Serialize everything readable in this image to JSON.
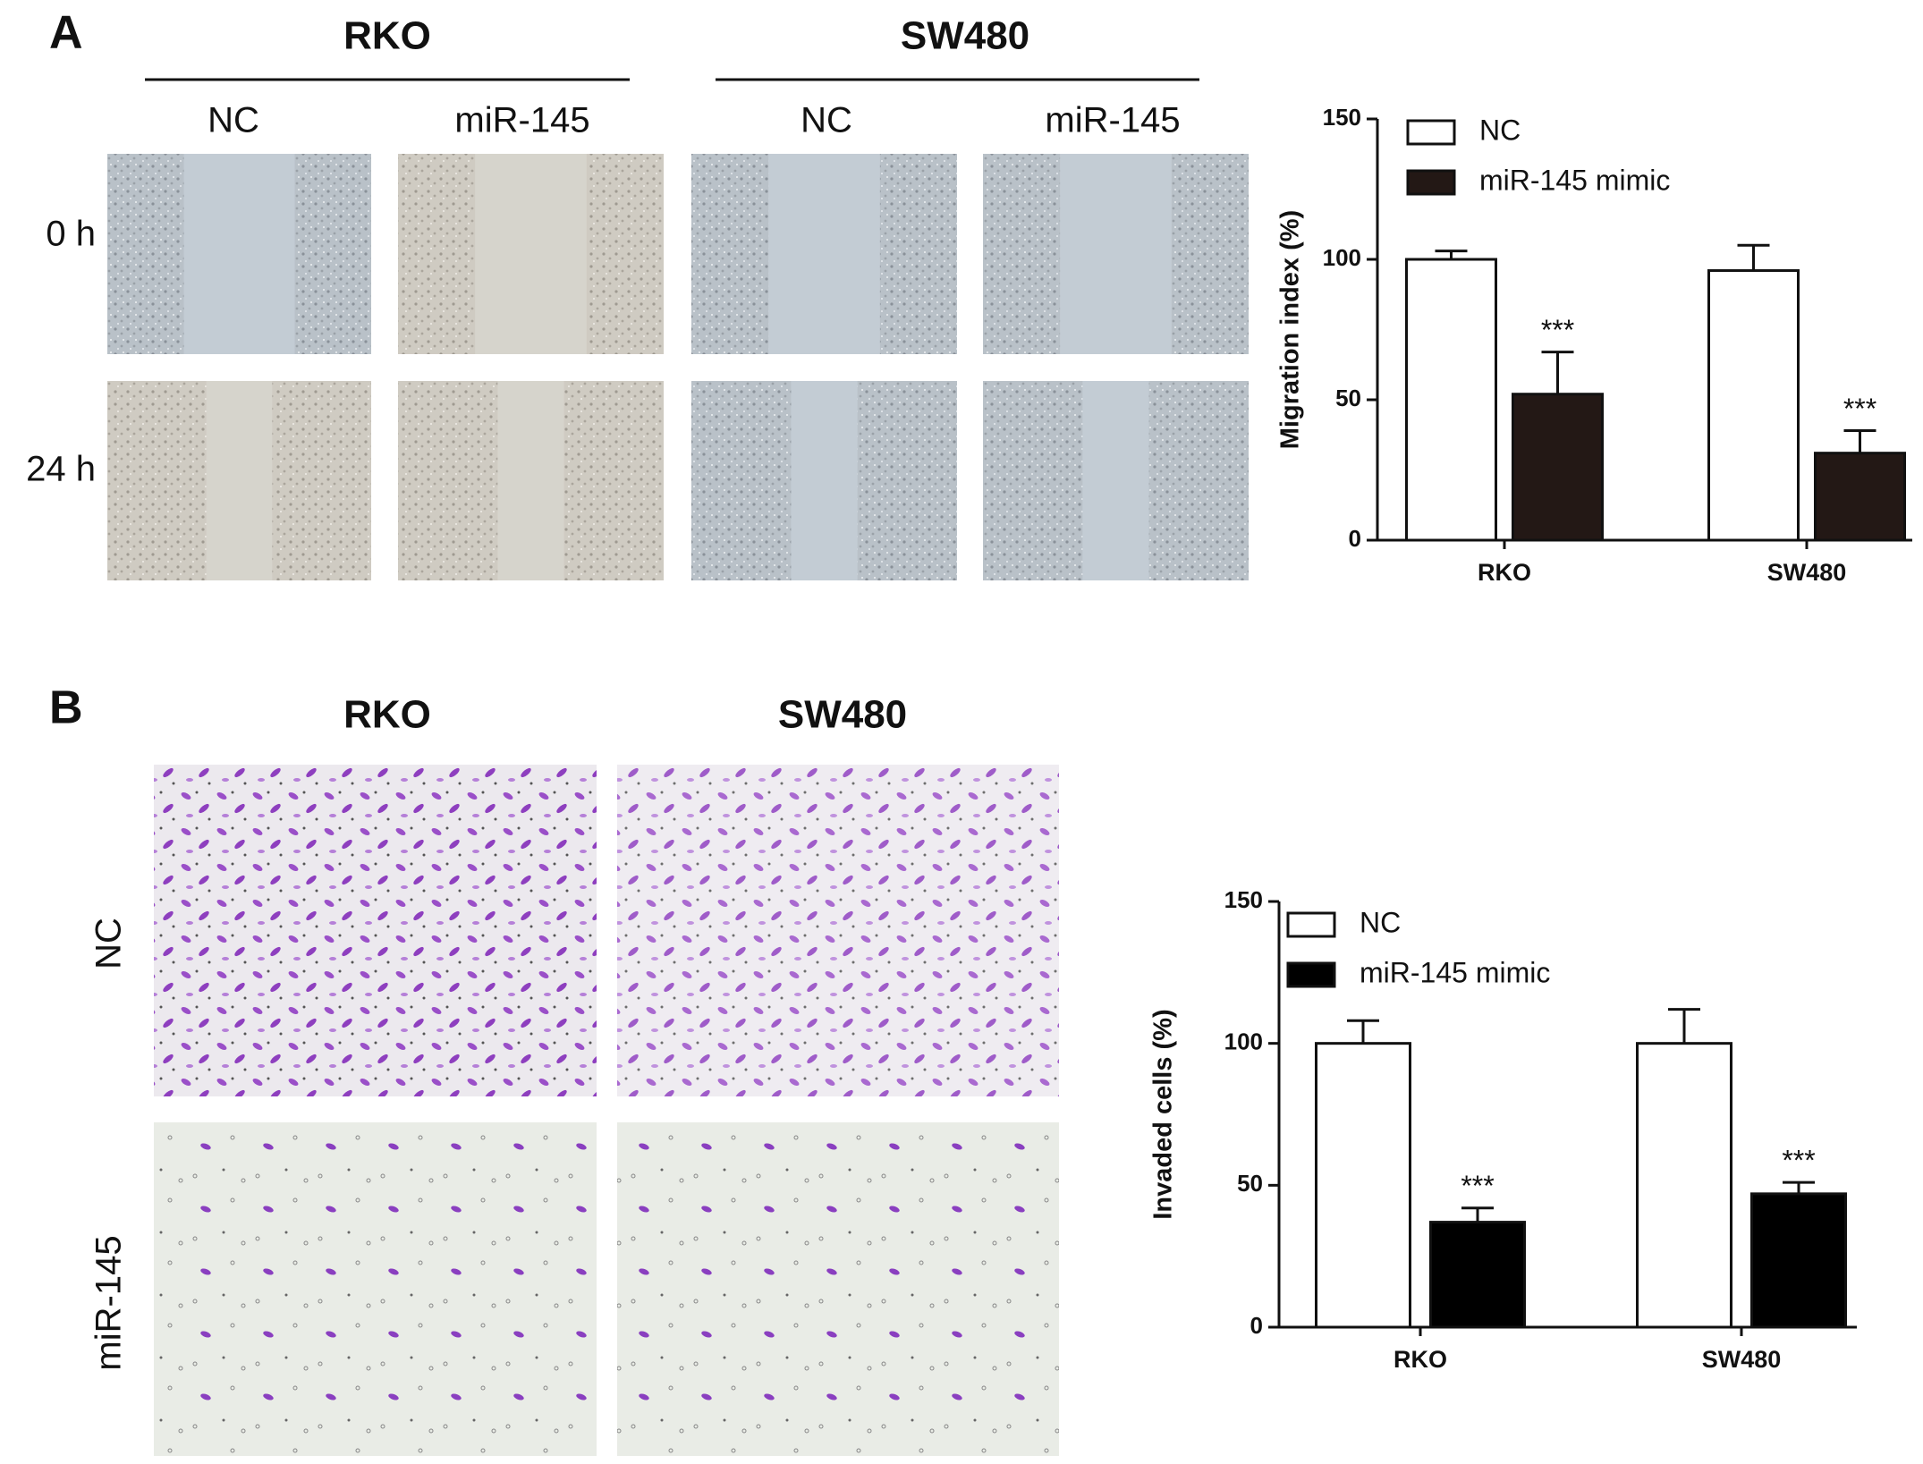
{
  "panel_a": {
    "label": "A",
    "columns": [
      "RKO",
      "SW480"
    ],
    "conditions": [
      "NC",
      "miR-145",
      "NC",
      "miR-145"
    ],
    "rows": [
      "0 h",
      "24 h"
    ]
  },
  "panel_b": {
    "label": "B",
    "columns": [
      "RKO",
      "SW480"
    ],
    "rows": [
      "NC",
      "miR-145"
    ]
  },
  "chart_data": [
    {
      "type": "bar",
      "y_label": "Migration index (%)",
      "categories": [
        "RKO",
        "SW480"
      ],
      "series": [
        {
          "name": "NC",
          "color": "#ffffff",
          "values": [
            100,
            96
          ],
          "errors": [
            3,
            9
          ]
        },
        {
          "name": "miR-145 mimic",
          "color": "#231815",
          "values": [
            52,
            31
          ],
          "errors": [
            15,
            8
          ],
          "annotations": [
            "***",
            "***"
          ]
        }
      ],
      "ylim": [
        0,
        150
      ],
      "yticks": [
        0,
        50,
        100,
        150
      ],
      "legend": "upper-left"
    },
    {
      "type": "bar",
      "y_label": "Invaded cells (%)",
      "categories": [
        "RKO",
        "SW480"
      ],
      "series": [
        {
          "name": "NC",
          "color": "#ffffff",
          "values": [
            100,
            100
          ],
          "errors": [
            8,
            12
          ]
        },
        {
          "name": "miR-145 mimic",
          "color": "#000000",
          "values": [
            37,
            47
          ],
          "errors": [
            5,
            4
          ],
          "annotations": [
            "***",
            "***"
          ]
        }
      ],
      "ylim": [
        0,
        150
      ],
      "yticks": [
        0,
        50,
        100,
        150
      ],
      "legend": "upper-left"
    }
  ]
}
